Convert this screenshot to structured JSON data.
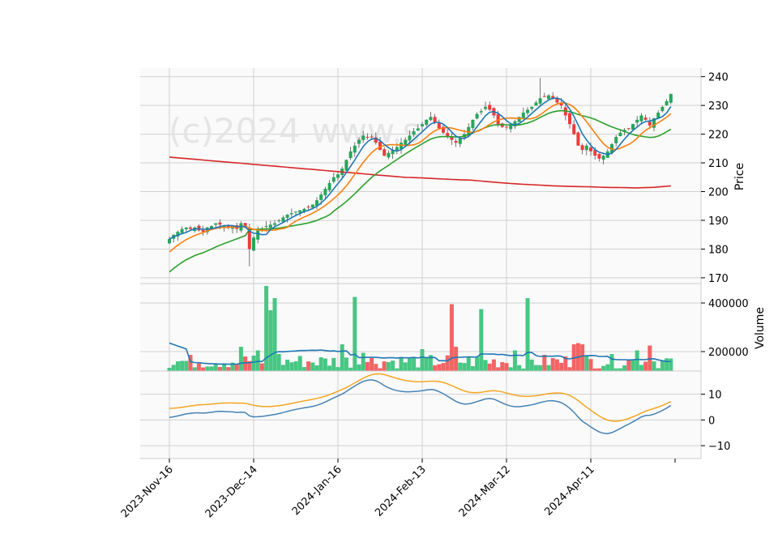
{
  "chart_data": {
    "type": "candlestick",
    "watermark": "(c)2024 www.s",
    "x_tick_labels": [
      "2023-Nov-16",
      "2023-Dec-14",
      "2024-Jan-16",
      "2024-Feb-13",
      "2024-Mar-12",
      "2024-Apr-11"
    ],
    "x_tick_index": [
      0,
      20,
      40,
      60,
      80,
      100
    ],
    "n_bars": 120,
    "price_panel": {
      "ylabel": "Price",
      "ylim": [
        168,
        243
      ],
      "yticks": [
        170,
        180,
        190,
        200,
        210,
        220,
        230,
        240
      ],
      "close": [
        183.5,
        185.0,
        186.0,
        187.0,
        187.5,
        187.0,
        187.5,
        186.5,
        186.0,
        187.5,
        188.0,
        189.0,
        188.5,
        188.0,
        187.5,
        188.0,
        187.0,
        189.0,
        187.5,
        180.0,
        184.0,
        186.5,
        187.0,
        188.0,
        188.5,
        189.0,
        190.0,
        191.0,
        192.0,
        192.5,
        193.0,
        193.5,
        194.0,
        194.5,
        195.5,
        197.0,
        199.0,
        201.0,
        203.0,
        205.0,
        206.0,
        208.0,
        211.0,
        214.0,
        216.0,
        218.0,
        219.5,
        219.0,
        219.0,
        217.0,
        214.5,
        212.5,
        213.5,
        214.5,
        215.5,
        217.0,
        218.0,
        219.5,
        221.0,
        222.0,
        223.5,
        225.0,
        226.0,
        224.0,
        222.0,
        220.5,
        219.0,
        218.0,
        217.0,
        218.5,
        220.0,
        222.5,
        225.0,
        227.0,
        228.0,
        229.5,
        228.5,
        226.5,
        223.5,
        222.5,
        222.5,
        223.0,
        224.5,
        226.0,
        227.5,
        228.5,
        229.5,
        231.0,
        232.5,
        233.0,
        233.5,
        232.5,
        231.0,
        230.0,
        226.5,
        223.5,
        220.0,
        216.0,
        214.5,
        216.0,
        214.0,
        212.5,
        211.5,
        212.5,
        214.0,
        216.5,
        219.0,
        220.5,
        221.5,
        222.0,
        223.5,
        225.0,
        226.5,
        225.0,
        223.0,
        225.5,
        227.5,
        229.5,
        231.5,
        234.0
      ],
      "ma_blue": {
        "period": 5,
        "color": "#1f77b4"
      },
      "ma_orange": {
        "period": 10,
        "color": "#ff7f0e"
      },
      "ma_green": {
        "period": 20,
        "color": "#2ca02c"
      },
      "ma_red": [
        212.0,
        211.5,
        211.0,
        210.5,
        210.0,
        209.5,
        209.0,
        208.5,
        208.0,
        207.5,
        207.0,
        206.5,
        206.0,
        205.5,
        205.0,
        204.8,
        204.5,
        204.2,
        204.0,
        203.5,
        203.0,
        202.6,
        202.3,
        202.0,
        201.8,
        201.7,
        201.5,
        201.4,
        201.3,
        201.5,
        202.0
      ],
      "ma_red_color": "#d62728",
      "up_color": "#26a65b",
      "down_color": "#ef3b3b"
    },
    "volume_panel": {
      "ylabel": "Volume",
      "ylim": [
        120000,
        480000
      ],
      "yticks": [
        200000,
        400000
      ],
      "ytick_labels": [
        "200000",
        "400000"
      ],
      "avg_color": "#1f77b4"
    },
    "indicator_panel": {
      "ylim": [
        -15,
        19
      ],
      "yticks": [
        -10,
        0,
        10
      ],
      "ytick_labels": [
        "−10",
        "0",
        "10"
      ],
      "line1_color": "#4682b4",
      "line2_color": "#f5a623"
    }
  }
}
